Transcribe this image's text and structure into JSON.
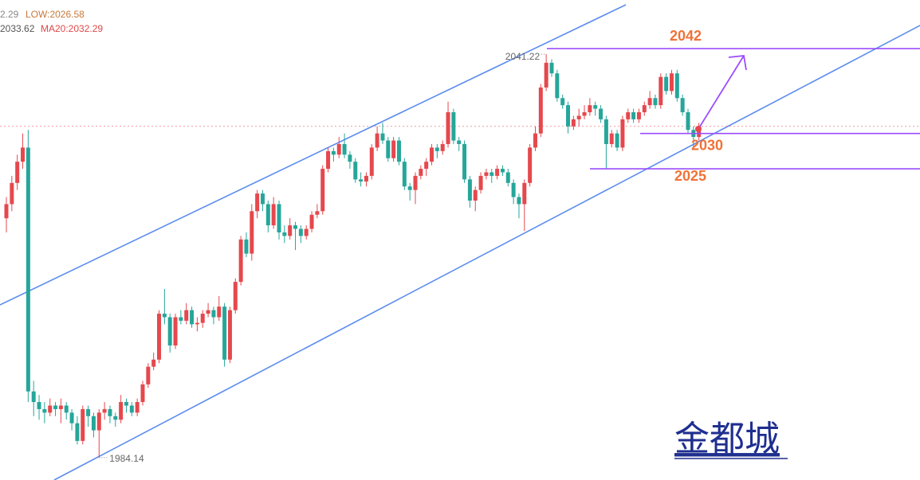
{
  "chart_data": {
    "type": "candlestick",
    "header": [
      "2.29",
      "LOW:2026.58",
      "2033.62",
      "MA20:2032.29"
    ],
    "up_color": "#e5484d",
    "down_color": "#26a69a",
    "ylim": [
      1980.97,
      2048.88
    ],
    "candles": [
      [
        2018,
        2021,
        2016,
        2020
      ],
      [
        2020,
        2024,
        2019,
        2023
      ],
      [
        2023,
        2027,
        2022,
        2026
      ],
      [
        2026,
        2030,
        2025,
        2028
      ],
      [
        2028,
        2030.5,
        1992,
        1993.5
      ],
      [
        1993.5,
        1995,
        1990,
        1992
      ],
      [
        1992,
        1993,
        1989.5,
        1991
      ],
      [
        1991,
        1992,
        1989,
        1990.5
      ],
      [
        1990.5,
        1992.5,
        1990,
        1991.5
      ],
      [
        1991.5,
        1992,
        1990,
        1991
      ],
      [
        1991,
        1992.5,
        1989,
        1991.5
      ],
      [
        1991.5,
        1992,
        1989.5,
        1990.5
      ],
      [
        1990.5,
        1991,
        1988,
        1989
      ],
      [
        1989,
        1990,
        1986,
        1986.5
      ],
      [
        1986.5,
        1991.5,
        1986,
        1991
      ],
      [
        1991,
        1991.5,
        1988.5,
        1990
      ],
      [
        1990,
        1990.5,
        1987,
        1988
      ],
      [
        1988,
        1991,
        1984.14,
        1990.5
      ],
      [
        1990.5,
        1992,
        1989.5,
        1991
      ],
      [
        1991,
        1991.5,
        1989,
        1990
      ],
      [
        1990,
        1990.5,
        1988.5,
        1989.5
      ],
      [
        1989.5,
        1993,
        1989,
        1992
      ],
      [
        1992,
        1992.5,
        1990.5,
        1991.5
      ],
      [
        1991.5,
        1992,
        1990,
        1990.5
      ],
      [
        1990.5,
        1992.5,
        1990,
        1992
      ],
      [
        1992,
        1995,
        1991.5,
        1994.5
      ],
      [
        1994.5,
        1997.5,
        1994,
        1997
      ],
      [
        1997,
        1999,
        1996.5,
        1998
      ],
      [
        1998,
        2005,
        1997.5,
        2004.5
      ],
      [
        2004.5,
        2008,
        2003,
        2004
      ],
      [
        2004,
        2004.5,
        1999,
        2000
      ],
      [
        2000,
        2004.5,
        1999.5,
        2004
      ],
      [
        2004,
        2005,
        2003,
        2003.5
      ],
      [
        2003.5,
        2006,
        2003,
        2005
      ],
      [
        2005,
        2005.5,
        2002.5,
        2003
      ],
      [
        2003,
        2004,
        2002,
        2003.2
      ],
      [
        2003.2,
        2005,
        2002.5,
        2004.5
      ],
      [
        2004.5,
        2006,
        2004,
        2005
      ],
      [
        2005,
        2005.5,
        2003,
        2004
      ],
      [
        2004,
        2007,
        2003.5,
        2005.5
      ],
      [
        2005.5,
        2006,
        1997,
        1998
      ],
      [
        1998,
        2005.5,
        1997.5,
        2005
      ],
      [
        2005,
        2009.5,
        2004.5,
        2009
      ],
      [
        2009,
        2015.5,
        2008.5,
        2015
      ],
      [
        2015,
        2016,
        2012.5,
        2013
      ],
      [
        2013,
        2020,
        2012,
        2019
      ],
      [
        2019,
        2022,
        2018,
        2021.5
      ],
      [
        2021.5,
        2022,
        2019,
        2020
      ],
      [
        2020,
        2020.5,
        2016,
        2017
      ],
      [
        2017,
        2021,
        2016.5,
        2020
      ],
      [
        2020,
        2020.5,
        2015,
        2016
      ],
      [
        2016,
        2017,
        2014.5,
        2015.5
      ],
      [
        2015.5,
        2018,
        2015,
        2017
      ],
      [
        2017,
        2017.5,
        2013.5,
        2016.5
      ],
      [
        2016.5,
        2017,
        2014.5,
        2015.5
      ],
      [
        2015.5,
        2017,
        2015,
        2016.5
      ],
      [
        2016.5,
        2019,
        2016,
        2018.5
      ],
      [
        2018.5,
        2020,
        2018,
        2019
      ],
      [
        2019,
        2025.5,
        2018.5,
        2025
      ],
      [
        2025,
        2028,
        2024.5,
        2027.5
      ],
      [
        2027.5,
        2028,
        2026,
        2027
      ],
      [
        2027,
        2029.5,
        2026.5,
        2028.5
      ],
      [
        2028.5,
        2030,
        2026.5,
        2027
      ],
      [
        2027,
        2027.5,
        2025,
        2026
      ],
      [
        2026,
        2026.5,
        2023,
        2023.5
      ],
      [
        2023.5,
        2024.5,
        2022.5,
        2023.2
      ],
      [
        2023.2,
        2024.5,
        2022.5,
        2024
      ],
      [
        2024,
        2028.5,
        2023.5,
        2028
      ],
      [
        2028,
        2031,
        2027.5,
        2030
      ],
      [
        2030,
        2031.5,
        2028.5,
        2029
      ],
      [
        2029,
        2029.5,
        2026,
        2026.5
      ],
      [
        2026.5,
        2029.5,
        2026,
        2029
      ],
      [
        2029,
        2029.5,
        2025.5,
        2026
      ],
      [
        2026,
        2026.5,
        2022,
        2022.5
      ],
      [
        2022.5,
        2023,
        2020.5,
        2022
      ],
      [
        2022,
        2024.5,
        2020,
        2024
      ],
      [
        2024,
        2025.5,
        2023.5,
        2025
      ],
      [
        2025,
        2026.5,
        2024,
        2026
      ],
      [
        2026,
        2028.5,
        2025.5,
        2028
      ],
      [
        2028,
        2028.5,
        2026.5,
        2027.5
      ],
      [
        2027.5,
        2029,
        2027,
        2028.5
      ],
      [
        2028.5,
        2034.5,
        2028,
        2033
      ],
      [
        2033,
        2033.5,
        2028.5,
        2029
      ],
      [
        2029,
        2029.5,
        2027.5,
        2028.5
      ],
      [
        2028.5,
        2029,
        2023,
        2023.5
      ],
      [
        2023.5,
        2024,
        2019.5,
        2020.5
      ],
      [
        2020.5,
        2022.5,
        2019,
        2022
      ],
      [
        2022,
        2024.5,
        2021.5,
        2024
      ],
      [
        2024,
        2025,
        2023.5,
        2024.5
      ],
      [
        2024.5,
        2025,
        2023,
        2024
      ],
      [
        2024,
        2025.5,
        2023.5,
        2025
      ],
      [
        2025,
        2025.5,
        2024,
        2024.5
      ],
      [
        2024.5,
        2025,
        2022.5,
        2023
      ],
      [
        2023,
        2023.5,
        2020,
        2021
      ],
      [
        2021,
        2021.5,
        2018,
        2020
      ],
      [
        2020,
        2023.5,
        2016.2,
        2023
      ],
      [
        2023,
        2028.5,
        2022.5,
        2028
      ],
      [
        2028,
        2031,
        2027.5,
        2030
      ],
      [
        2030,
        2037,
        2029.5,
        2036.5
      ],
      [
        2036.5,
        2041.22,
        2036,
        2040
      ],
      [
        2040,
        2040.5,
        2038,
        2038.5
      ],
      [
        2038.5,
        2039,
        2034.5,
        2035
      ],
      [
        2035,
        2035.5,
        2033.5,
        2034
      ],
      [
        2034,
        2034.5,
        2030,
        2031
      ],
      [
        2031,
        2032.5,
        2030.5,
        2032
      ],
      [
        2032,
        2033.5,
        2031,
        2032.5
      ],
      [
        2032.5,
        2034,
        2032,
        2033
      ],
      [
        2033,
        2035,
        2032.5,
        2034
      ],
      [
        2034,
        2034.5,
        2032.5,
        2033.5
      ],
      [
        2033.5,
        2034,
        2031.5,
        2032
      ],
      [
        2032,
        2032.5,
        2025,
        2028.5
      ],
      [
        2028.5,
        2030.5,
        2028,
        2030
      ],
      [
        2030,
        2030.5,
        2027.5,
        2028
      ],
      [
        2028,
        2032.5,
        2027.5,
        2032
      ],
      [
        2032,
        2033.5,
        2031.5,
        2033
      ],
      [
        2033,
        2033.5,
        2031.5,
        2032
      ],
      [
        2032,
        2033.5,
        2031.5,
        2033
      ],
      [
        2033,
        2034.5,
        2032.5,
        2034
      ],
      [
        2034,
        2036,
        2033.5,
        2035
      ],
      [
        2035,
        2035.5,
        2033.5,
        2034
      ],
      [
        2034,
        2038.5,
        2033.5,
        2038
      ],
      [
        2038,
        2038.5,
        2035.5,
        2036
      ],
      [
        2036,
        2039,
        2035.5,
        2038.5
      ],
      [
        2038.5,
        2039,
        2034.5,
        2035
      ],
      [
        2035,
        2035.5,
        2032.5,
        2033
      ],
      [
        2033,
        2033.5,
        2030,
        2030.5
      ],
      [
        2030.5,
        2031,
        2028,
        2029.5
      ],
      [
        2029.5,
        2031.5,
        2029,
        2031
      ]
    ],
    "high_label": "2041.22",
    "low_label": "1984.14",
    "levels": [
      2042,
      2030,
      2025
    ],
    "level_color": "#9b4dff",
    "level_label_color": "#f07238",
    "watermark": "金都城"
  }
}
